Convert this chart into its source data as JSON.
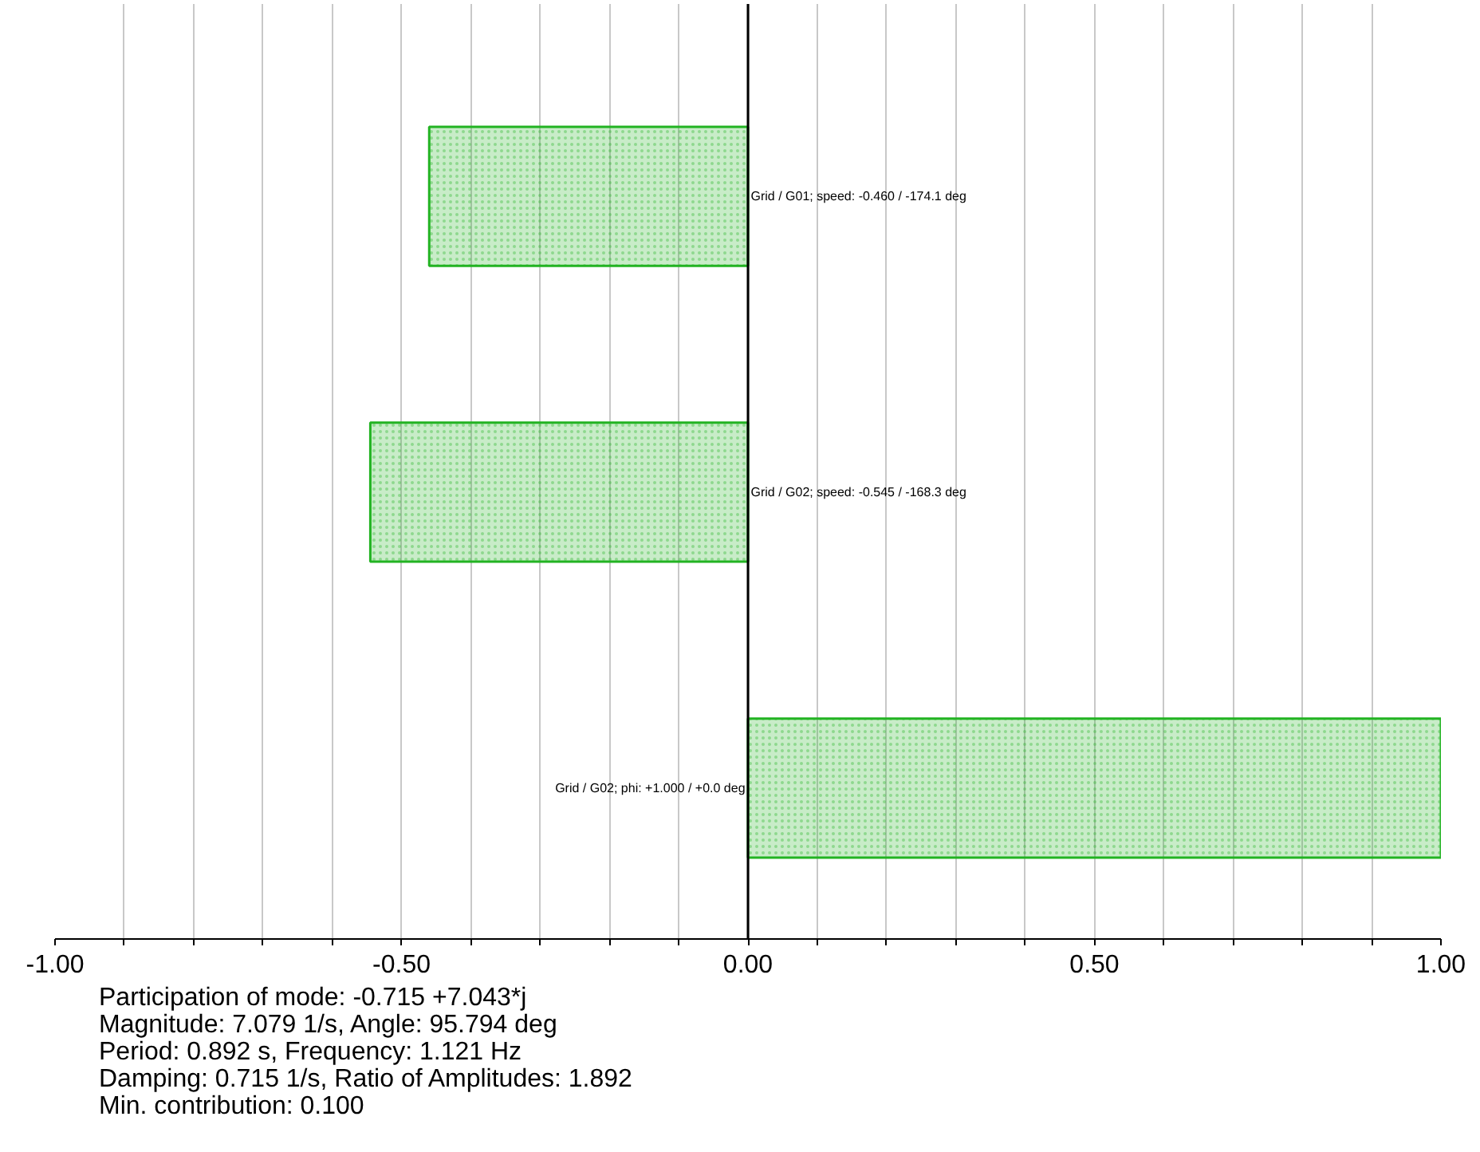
{
  "chart_data": {
    "type": "bar",
    "orientation": "horizontal",
    "categories": [
      null,
      null,
      null
    ],
    "values": [
      -0.46,
      -0.545,
      1.0
    ],
    "value_labels": [
      "Grid / G01; speed: -0.460 / -174.1 deg",
      "Grid / G02; speed: -0.545 / -168.3 deg",
      "Grid / G02; phi: +1.000 / +0.0 deg"
    ],
    "color": "#22b322",
    "xlim": [
      -1.0,
      1.0
    ],
    "xticks": [
      {
        "value": -1.0,
        "label": "-1.00"
      },
      {
        "value": -0.9,
        "label": null
      },
      {
        "value": -0.8,
        "label": null
      },
      {
        "value": -0.7,
        "label": null
      },
      {
        "value": -0.6,
        "label": null
      },
      {
        "value": -0.5,
        "label": "-0.50"
      },
      {
        "value": -0.4,
        "label": null
      },
      {
        "value": -0.3,
        "label": null
      },
      {
        "value": -0.2,
        "label": null
      },
      {
        "value": -0.1,
        "label": null
      },
      {
        "value": 0.0,
        "label": "0.00"
      },
      {
        "value": 0.1,
        "label": null
      },
      {
        "value": 0.2,
        "label": null
      },
      {
        "value": 0.3,
        "label": null
      },
      {
        "value": 0.4,
        "label": null
      },
      {
        "value": 0.5,
        "label": "0.50"
      },
      {
        "value": 0.6,
        "label": null
      },
      {
        "value": 0.7,
        "label": null
      },
      {
        "value": 0.8,
        "label": null
      },
      {
        "value": 0.9,
        "label": null
      },
      {
        "value": 1.0,
        "label": "1.00"
      }
    ],
    "grid": "x",
    "annotations": [
      "Participation of mode: -0.715 +7.043*j",
      "Magnitude: 7.079 1/s,  Angle: 95.794 deg",
      "Period: 0.892 s,  Frequency: 1.121 Hz",
      "Damping: 0.715 1/s,  Ratio of Amplitudes: 1.892",
      "Min. contribution: 0.100"
    ]
  }
}
